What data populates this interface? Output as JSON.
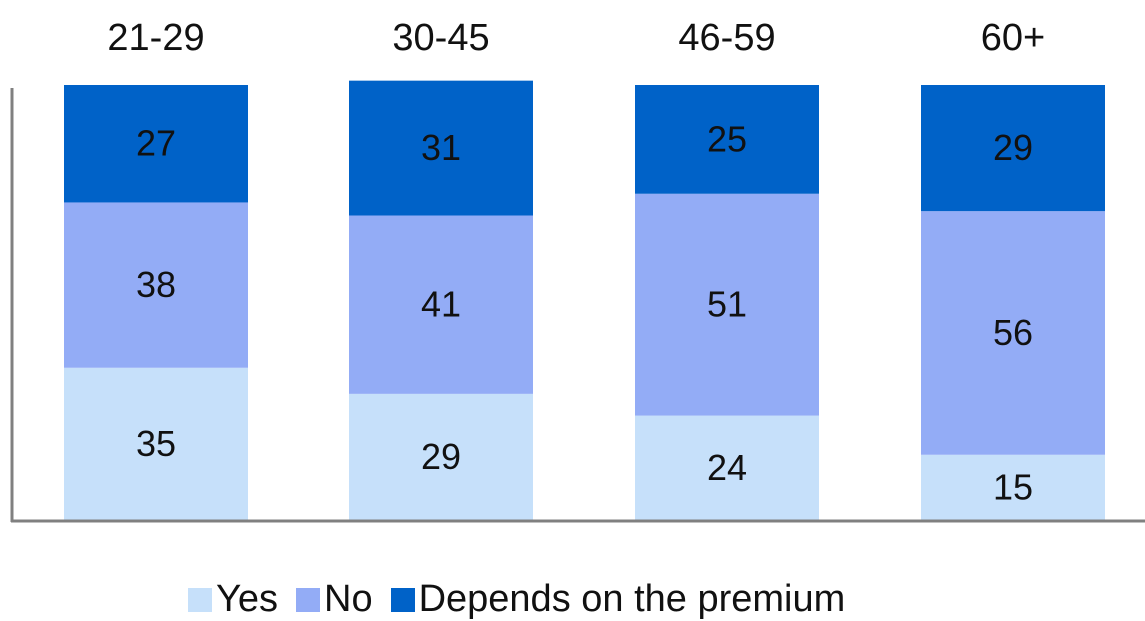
{
  "chart_data": {
    "type": "bar",
    "stacked": true,
    "categories": [
      "21-29",
      "30-45",
      "46-59",
      "60+"
    ],
    "series": [
      {
        "name": "Yes",
        "values": [
          35,
          29,
          24,
          15
        ],
        "color": "#c6e0fa"
      },
      {
        "name": "No",
        "values": [
          38,
          41,
          51,
          56
        ],
        "color": "#93acf6"
      },
      {
        "name": "Depends on the premium",
        "values": [
          27,
          31,
          25,
          29
        ],
        "color": "#0062c8"
      }
    ],
    "ylim": [
      0,
      100
    ],
    "category_axis_position": "top",
    "legend_position": "bottom",
    "grid": false
  }
}
